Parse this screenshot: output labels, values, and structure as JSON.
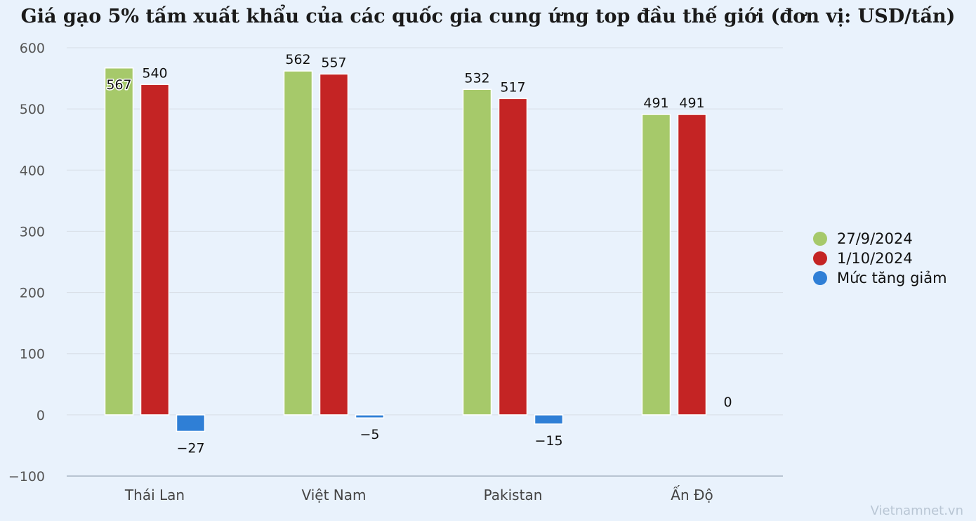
{
  "title": "Giá gạo 5% tấm xuất khẩu của các quốc gia cung ứng top đầu thế giới (đơn vị: USD/tấn)",
  "watermark": "Vietnamnet.vn",
  "colors": {
    "background": "#e9f2fc",
    "series_27_9": "#a6c96a",
    "series_1_10": "#c42424",
    "series_change": "#2f7fd6",
    "grid": "#d8dee6"
  },
  "chart_data": {
    "type": "bar",
    "title": "Giá gạo 5% tấm xuất khẩu của các quốc gia cung ứng top đầu thế giới (đơn vị: USD/tấn)",
    "categories": [
      "Thái Lan",
      "Việt Nam",
      "Pakistan",
      "Ấn Độ"
    ],
    "series": [
      {
        "name": "27/9/2024",
        "color": "#a6c96a",
        "values": [
          567,
          562,
          532,
          491
        ]
      },
      {
        "name": "1/10/2024",
        "color": "#c42424",
        "values": [
          540,
          557,
          517,
          491
        ]
      },
      {
        "name": "Mức tăng giảm",
        "color": "#2f7fd6",
        "values": [
          -27,
          -5,
          -15,
          0
        ]
      }
    ],
    "yticks": [
      600,
      500,
      400,
      300,
      200,
      100,
      0,
      -100
    ],
    "ylim": [
      -100,
      600
    ],
    "grid": true,
    "legend_position": "right"
  }
}
